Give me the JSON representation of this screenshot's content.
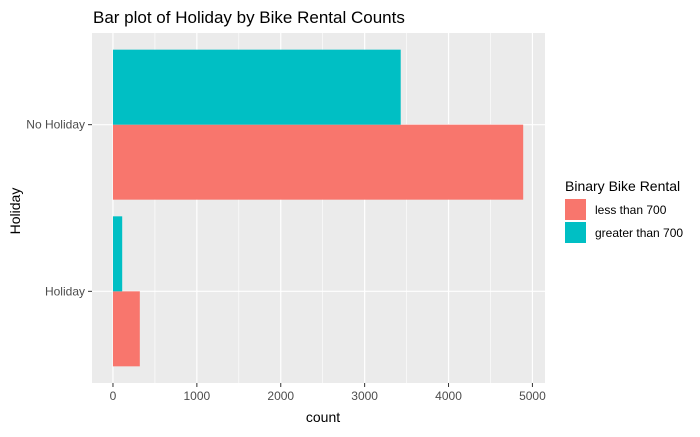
{
  "chart_data": {
    "type": "bar",
    "orientation": "horizontal",
    "title": "Bar plot of Holiday by Bike Rental Counts",
    "xlabel": "count",
    "ylabel": "Holiday",
    "categories": [
      "Holiday",
      "No Holiday"
    ],
    "xlim": [
      -250,
      5150
    ],
    "x_ticks": [
      0,
      1000,
      2000,
      3000,
      4000,
      5000
    ],
    "x_tick_labels": [
      "0",
      "1000",
      "2000",
      "3000",
      "4000",
      "5000"
    ],
    "grid": true,
    "legend": {
      "title": "Binary Bike Rental",
      "position": "right"
    },
    "series": [
      {
        "name": "less than 700",
        "color": "#F8766D",
        "values": [
          320,
          4890
        ]
      },
      {
        "name": "greater than 700",
        "color": "#00BFC4",
        "values": [
          110,
          3430
        ]
      }
    ],
    "panel_background": "#EBEBEB",
    "grid_color": "#FFFFFF"
  }
}
